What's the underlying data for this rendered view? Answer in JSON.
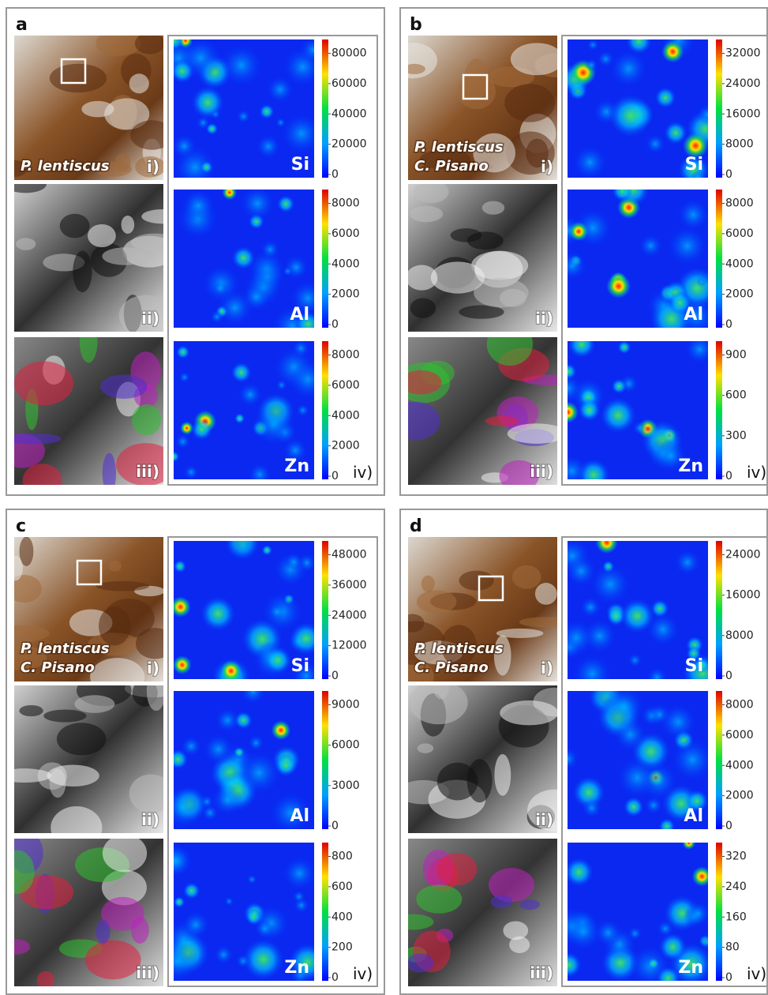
{
  "panels": [
    {
      "letter": "a",
      "species": [
        "P. lentiscus"
      ],
      "image_labels": [
        "i)",
        "ii)",
        "iii)"
      ],
      "map_label": "iv)",
      "maps": [
        {
          "element": "Si",
          "ticks": [
            0,
            20000,
            40000,
            60000,
            80000
          ]
        },
        {
          "element": "Al",
          "ticks": [
            0,
            2000,
            4000,
            6000,
            8000
          ]
        },
        {
          "element": "Zn",
          "ticks": [
            0,
            2000,
            4000,
            6000,
            8000
          ]
        }
      ]
    },
    {
      "letter": "b",
      "species": [
        "P. lentiscus",
        "C. Pisano"
      ],
      "image_labels": [
        "i)",
        "ii)",
        "iii)"
      ],
      "map_label": "iv)",
      "maps": [
        {
          "element": "Si",
          "ticks": [
            0,
            8000,
            16000,
            24000,
            32000
          ]
        },
        {
          "element": "Al",
          "ticks": [
            0,
            2000,
            4000,
            6000,
            8000
          ]
        },
        {
          "element": "Zn",
          "ticks": [
            0,
            300,
            600,
            900
          ]
        }
      ]
    },
    {
      "letter": "c",
      "species": [
        "P. lentiscus",
        "C. Pisano"
      ],
      "image_labels": [
        "i)",
        "ii)",
        "iii)"
      ],
      "map_label": "iv)",
      "maps": [
        {
          "element": "Si",
          "ticks": [
            0,
            12000,
            24000,
            36000,
            48000
          ]
        },
        {
          "element": "Al",
          "ticks": [
            0,
            3000,
            6000,
            9000
          ]
        },
        {
          "element": "Zn",
          "ticks": [
            0,
            200,
            400,
            600,
            800
          ]
        }
      ]
    },
    {
      "letter": "d",
      "species": [
        "P. lentiscus",
        "C. Pisano"
      ],
      "image_labels": [
        "i)",
        "ii)",
        "iii)"
      ],
      "map_label": "iv)",
      "maps": [
        {
          "element": "Si",
          "ticks": [
            0,
            8000,
            16000,
            24000
          ]
        },
        {
          "element": "Al",
          "ticks": [
            0,
            2000,
            4000,
            6000,
            8000
          ]
        },
        {
          "element": "Zn",
          "ticks": [
            0,
            80,
            160,
            240,
            320
          ]
        }
      ]
    }
  ]
}
